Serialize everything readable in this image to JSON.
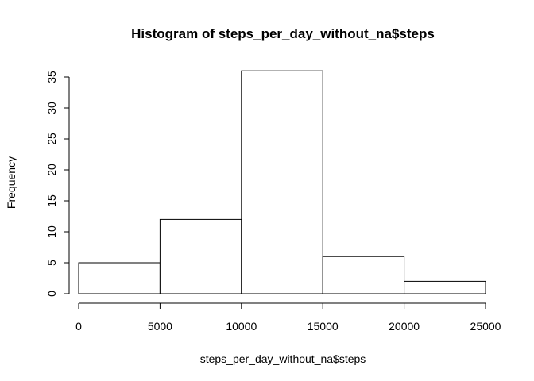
{
  "chart_data": {
    "type": "bar",
    "title": "Histogram of steps_per_day_without_na$steps",
    "xlabel": "steps_per_day_without_na$steps",
    "ylabel": "Frequency",
    "bins": [
      {
        "from": 0,
        "to": 5000,
        "count": 5
      },
      {
        "from": 5000,
        "to": 10000,
        "count": 12
      },
      {
        "from": 10000,
        "to": 15000,
        "count": 36
      },
      {
        "from": 15000,
        "to": 20000,
        "count": 6
      },
      {
        "from": 20000,
        "to": 25000,
        "count": 2
      }
    ],
    "xlim": [
      0,
      25000
    ],
    "ylim": [
      0,
      36
    ],
    "x_ticks": [
      "0",
      "5000",
      "10000",
      "15000",
      "20000",
      "25000"
    ],
    "y_ticks": [
      "0",
      "5",
      "10",
      "15",
      "20",
      "25",
      "30",
      "35"
    ],
    "grid": false,
    "legend": "none"
  }
}
